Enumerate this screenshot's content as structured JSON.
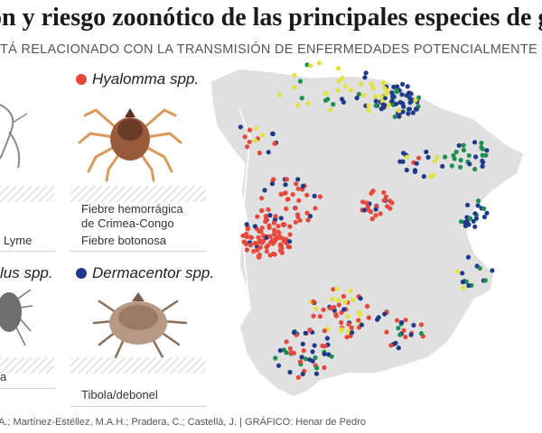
{
  "title": "ón y riesgo zoonótico de las principales especies de gar",
  "subtitle": "STÁ RELACIONADO CON LA TRANSMISIÓN DE ENFERMEDADES POTENCIALMENTE GRA",
  "legend": {
    "left_col": {
      "disease_top": "Lyme",
      "species_bottom": "lus spp.",
      "disease_bottom": "a"
    },
    "hyalomma": {
      "name": "Hyalomma spp.",
      "color": "#e8483b",
      "diseases": [
        "Fiebre hemorrágica",
        "de Crimea-Congo",
        "Fiebre botonosa"
      ]
    },
    "dermacentor": {
      "name": "Dermacentor spp.",
      "color": "#1f3a8a",
      "diseases": [
        "Tibola/debonel"
      ]
    },
    "other_colors": {
      "green": "#1d8f4e",
      "yellow": "#e2e23a"
    }
  },
  "footer": "A.; Martínez-Estéllez, M.A.H.; Pradera, C.; Castellà, J.  |  GRÁFICO: Henar de Pedro"
}
